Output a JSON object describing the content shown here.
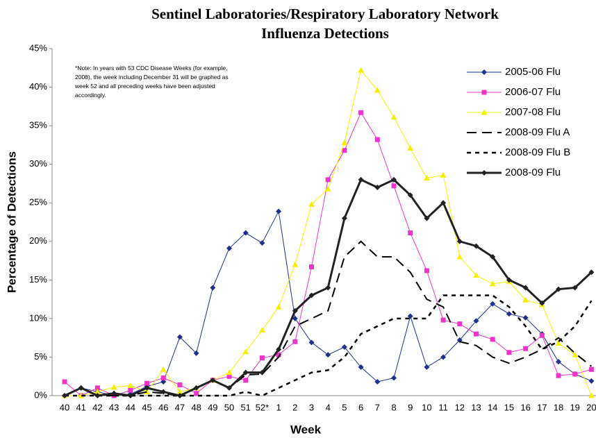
{
  "chart_data": {
    "type": "line",
    "title": [
      "Sentinel Laboratories/Respiratory Laboratory Network",
      "Influenza Detections"
    ],
    "note": [
      "*Note: In years with 53 CDC Disease Weeks (for example,",
      "2008), the week including December 31 will be graphed as",
      "week 52 and all preceding weeks have been adjusted",
      "accordingly."
    ],
    "x_label": "Week",
    "y_label": "Percentage of Detections",
    "categories": [
      "40",
      "41",
      "42",
      "43",
      "44",
      "45",
      "46",
      "47",
      "48",
      "49",
      "50",
      "51",
      "52*",
      "1",
      "2",
      "3",
      "4",
      "5",
      "6",
      "7",
      "8",
      "9",
      "10",
      "11",
      "12",
      "13",
      "14",
      "15",
      "16",
      "17",
      "18",
      "19",
      "20"
    ],
    "ylim": [
      0,
      45
    ],
    "yticks": [
      {
        "value": 0,
        "label": "0%"
      },
      {
        "value": 5,
        "label": "5%"
      },
      {
        "value": 10,
        "label": "10%"
      },
      {
        "value": 15,
        "label": "15%"
      },
      {
        "value": 20,
        "label": "20%"
      },
      {
        "value": 25,
        "label": "25%"
      },
      {
        "value": 30,
        "label": "30%"
      },
      {
        "value": 35,
        "label": "35%"
      },
      {
        "value": 40,
        "label": "40%"
      },
      {
        "value": 45,
        "label": "45%"
      }
    ],
    "grid": false,
    "legend": "top-right",
    "series": [
      {
        "name": "2005-06 Flu",
        "color": "#1f2f8f",
        "marker": "diamond",
        "dash": "solid",
        "width": 1,
        "values": [
          0,
          1,
          0.5,
          0,
          0.2,
          1.2,
          1.8,
          7.6,
          5.5,
          14,
          19.1,
          21.1,
          19.8,
          23.9,
          10,
          6.9,
          5.3,
          6.3,
          3.7,
          1.8,
          2.3,
          10.3,
          3.7,
          5,
          7.2,
          9.7,
          11.9,
          10.6,
          10.1,
          8,
          4.4,
          2.8,
          1.9
        ]
      },
      {
        "name": "2006-07 Flu",
        "color": "#ee33cc",
        "marker": "square",
        "dash": "solid",
        "width": 1,
        "values": [
          1.8,
          0,
          1,
          0,
          0.7,
          1.6,
          2.3,
          1.4,
          0.3,
          2,
          2.5,
          2,
          4.9,
          5.3,
          7,
          16.7,
          28,
          31.8,
          36.7,
          33.2,
          27.2,
          21.1,
          16.2,
          9.8,
          9.3,
          8,
          7.3,
          5.6,
          6.1,
          7.8,
          2.6,
          2.8,
          3.4
        ]
      },
      {
        "name": "2007-08 Flu",
        "color": "#f5f000",
        "marker": "triangle",
        "dash": "solid",
        "width": 1,
        "values": [
          0,
          0,
          0.5,
          1.1,
          1.3,
          0.5,
          3.4,
          0.5,
          1,
          2,
          3,
          5.7,
          8.5,
          11.5,
          17,
          24.8,
          26.8,
          32.8,
          42.2,
          39.6,
          36.1,
          32.1,
          28.2,
          28.6,
          18,
          15.6,
          14.5,
          14.8,
          12.4,
          11.8,
          6.8,
          5.3,
          0
        ]
      },
      {
        "name": "2008-09 Flu A",
        "color": "#000000",
        "marker": "none",
        "dash": "long",
        "width": 2,
        "values": [
          0,
          1,
          0,
          0,
          0,
          0.5,
          0.3,
          0,
          1,
          2,
          1,
          2.7,
          2.8,
          5,
          9,
          10,
          11,
          18,
          20,
          18,
          18,
          16,
          12.5,
          11.5,
          7,
          6.5,
          5,
          4.2,
          5,
          6,
          7.5,
          5.5,
          3.8
        ]
      },
      {
        "name": "2008-09 Flu B",
        "color": "#000000",
        "marker": "none",
        "dash": "short",
        "width": 2.5,
        "values": [
          0,
          0,
          0,
          0,
          0,
          0,
          0,
          0,
          0,
          0,
          0,
          0.5,
          0,
          1,
          2,
          3,
          3.3,
          5,
          8,
          9,
          10,
          10,
          10,
          13,
          13,
          13,
          13,
          11.5,
          9,
          6,
          7,
          9,
          12.3
        ]
      },
      {
        "name": "2008-09 Flu",
        "color": "#222222",
        "marker": "diamond",
        "dash": "solid",
        "width": 3,
        "values": [
          0,
          1,
          0,
          0.3,
          0,
          1,
          0.5,
          0,
          1,
          2,
          1,
          3,
          3,
          6,
          11,
          13,
          14,
          23,
          28,
          27,
          28,
          26,
          23,
          25,
          20,
          19.4,
          18,
          15,
          14,
          12,
          13.8,
          14,
          16
        ]
      }
    ]
  }
}
